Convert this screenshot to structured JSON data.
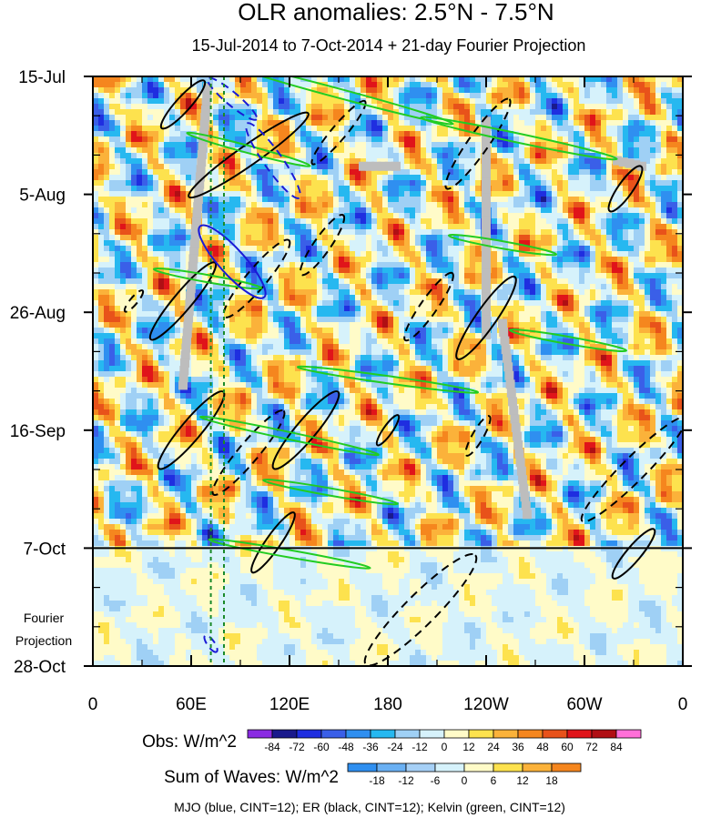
{
  "chart_data": {
    "type": "heatmap",
    "title": "OLR anomalies: 2.5°N - 7.5°N",
    "subtitle": "15-Jul-2014 to 7-Oct-2014 + 21-day Fourier Projection",
    "x_ticks": [
      "0",
      "60E",
      "120E",
      "180",
      "120W",
      "60W",
      "0"
    ],
    "x_values": [
      0,
      60,
      120,
      180,
      240,
      300,
      360
    ],
    "xlim": [
      0,
      360
    ],
    "y_ticks": [
      "15-Jul",
      "5-Aug",
      "26-Aug",
      "16-Sep",
      "7-Oct",
      "28-Oct"
    ],
    "y_day_offsets": [
      0,
      21,
      42,
      63,
      84,
      105
    ],
    "ylim_days": [
      0,
      105
    ],
    "obs_end_day": 84,
    "projection_label": [
      "Fourier",
      "Projection"
    ],
    "obs_colorbar": {
      "label": "Obs: W/m^2",
      "levels": [
        "-84",
        "-72",
        "-60",
        "-48",
        "-36",
        "-24",
        "-12",
        "0",
        "12",
        "24",
        "36",
        "48",
        "60",
        "72",
        "84"
      ],
      "colors": [
        "#8a2be2",
        "#1a1a8c",
        "#1f2ee0",
        "#3a5fe8",
        "#2f8ff0",
        "#26b8f0",
        "#9fd0f5",
        "#d6f2fb",
        "#fffbc8",
        "#fde24e",
        "#fbb23a",
        "#f5861e",
        "#e8521a",
        "#e0141a",
        "#b00f14",
        "#ff6fd8"
      ]
    },
    "waves_colorbar": {
      "label": "Sum of Waves: W/m^2",
      "levels": [
        "-18",
        "-12",
        "-6",
        "0",
        "6",
        "12",
        "18"
      ],
      "colors": [
        "#2f8ff0",
        "#6ab0f3",
        "#a6d0f6",
        "#d6f2fb",
        "#fffbc8",
        "#fde24e",
        "#fbb23a",
        "#f5861e"
      ]
    },
    "footnote": "MJO (blue, CINT=12); ER (black, CINT=12); Kelvin (green, CINT=12)",
    "series": [
      {
        "name": "MJO",
        "color": "#1a1ad6",
        "contour_interval": 12
      },
      {
        "name": "ER",
        "color": "#000000",
        "contour_interval": 12
      },
      {
        "name": "Kelvin",
        "color": "#22cc22",
        "contour_interval": 12
      }
    ],
    "reference_lines_lon": [
      72,
      80
    ],
    "mjo_contours": [
      {
        "lon": 85,
        "day": 4,
        "len": 70,
        "wid": 14,
        "angle": 40,
        "dashed": true
      },
      {
        "lon": 110,
        "day": 15,
        "len": 100,
        "wid": 20,
        "angle": 55,
        "dashed": true
      },
      {
        "lon": 85,
        "day": 33,
        "len": 105,
        "wid": 28,
        "angle": 48,
        "dashed": false
      },
      {
        "lon": 72,
        "day": 101,
        "len": 22,
        "wid": 8,
        "angle": 55,
        "dashed": true
      }
    ],
    "er_contours": [
      {
        "lon": 55,
        "day": 5,
        "len": 70,
        "wid": 16,
        "angle": -48,
        "dashed": false
      },
      {
        "lon": 95,
        "day": 14,
        "len": 160,
        "wid": 22,
        "angle": -35,
        "dashed": false
      },
      {
        "lon": 150,
        "day": 10,
        "len": 90,
        "wid": 16,
        "angle": -50,
        "dashed": true
      },
      {
        "lon": 235,
        "day": 12,
        "len": 120,
        "wid": 22,
        "angle": -55,
        "dashed": true
      },
      {
        "lon": 325,
        "day": 20,
        "len": 60,
        "wid": 16,
        "angle": -55,
        "dashed": false
      },
      {
        "lon": 140,
        "day": 30,
        "len": 80,
        "wid": 18,
        "angle": -55,
        "dashed": true
      },
      {
        "lon": 100,
        "day": 36,
        "len": 110,
        "wid": 22,
        "angle": -50,
        "dashed": true
      },
      {
        "lon": 55,
        "day": 40,
        "len": 110,
        "wid": 20,
        "angle": -50,
        "dashed": false
      },
      {
        "lon": 205,
        "day": 41,
        "len": 90,
        "wid": 18,
        "angle": -55,
        "dashed": true
      },
      {
        "lon": 240,
        "day": 43,
        "len": 110,
        "wid": 22,
        "angle": -55,
        "dashed": false
      },
      {
        "lon": 25,
        "day": 40,
        "len": 30,
        "wid": 8,
        "angle": -50,
        "dashed": true
      },
      {
        "lon": 60,
        "day": 63,
        "len": 110,
        "wid": 22,
        "angle": -50,
        "dashed": false
      },
      {
        "lon": 95,
        "day": 67,
        "len": 120,
        "wid": 22,
        "angle": -50,
        "dashed": true
      },
      {
        "lon": 130,
        "day": 63,
        "len": 110,
        "wid": 22,
        "angle": -50,
        "dashed": false
      },
      {
        "lon": 180,
        "day": 63,
        "len": 40,
        "wid": 10,
        "angle": -55,
        "dashed": false
      },
      {
        "lon": 235,
        "day": 64,
        "len": 50,
        "wid": 12,
        "angle": -60,
        "dashed": true
      },
      {
        "lon": 330,
        "day": 70,
        "len": 160,
        "wid": 26,
        "angle": -45,
        "dashed": true
      },
      {
        "lon": 200,
        "day": 95,
        "len": 170,
        "wid": 34,
        "angle": -45,
        "dashed": true
      },
      {
        "lon": 330,
        "day": 85,
        "len": 70,
        "wid": 16,
        "angle": -50,
        "dashed": false
      },
      {
        "lon": 110,
        "day": 83,
        "len": 80,
        "wid": 16,
        "angle": -55,
        "dashed": false
      }
    ],
    "kelvin_contours": [
      {
        "lon": 150,
        "day": 3,
        "len": 260,
        "wid": 10,
        "angle": 15
      },
      {
        "lon": 95,
        "day": 13,
        "len": 140,
        "wid": 8,
        "angle": 15
      },
      {
        "lon": 260,
        "day": 11,
        "len": 220,
        "wid": 10,
        "angle": 12
      },
      {
        "lon": 250,
        "day": 30,
        "len": 120,
        "wid": 8,
        "angle": 10
      },
      {
        "lon": 70,
        "day": 36,
        "len": 120,
        "wid": 8,
        "angle": 10
      },
      {
        "lon": 290,
        "day": 47,
        "len": 130,
        "wid": 8,
        "angle": 10
      },
      {
        "lon": 180,
        "day": 54,
        "len": 200,
        "wid": 8,
        "angle": 8
      },
      {
        "lon": 120,
        "day": 64,
        "len": 200,
        "wid": 8,
        "angle": 12
      },
      {
        "lon": 145,
        "day": 74,
        "len": 150,
        "wid": 8,
        "angle": 10
      },
      {
        "lon": 120,
        "day": 85,
        "len": 180,
        "wid": 8,
        "angle": 10
      }
    ]
  }
}
